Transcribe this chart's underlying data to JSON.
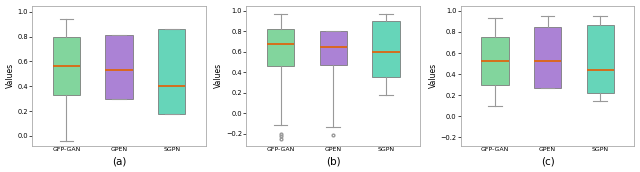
{
  "panels": [
    {
      "label": "(a)",
      "ylabel": "Values",
      "ylim": [
        -0.08,
        1.05
      ],
      "yticks": [
        0.0,
        0.2,
        0.4,
        0.6,
        0.8,
        1.0
      ],
      "categories": [
        "GFP-GAN",
        "GPEN",
        "SGPN"
      ],
      "colors": [
        "#66cc88",
        "#9966cc",
        "#44ccaa"
      ],
      "boxes": [
        {
          "whislo": -0.04,
          "q1": 0.33,
          "med": 0.56,
          "q3": 0.8,
          "whishi": 0.94,
          "fliers": []
        },
        {
          "whislo": 0.3,
          "q1": 0.3,
          "med": 0.53,
          "q3": 0.81,
          "whishi": 0.81,
          "fliers": []
        },
        {
          "whislo": 0.18,
          "q1": 0.18,
          "med": 0.4,
          "q3": 0.86,
          "whishi": 0.86,
          "fliers": []
        }
      ]
    },
    {
      "label": "(b)",
      "ylabel": "Values",
      "ylim": [
        -0.32,
        1.05
      ],
      "yticks": [
        -0.2,
        0.0,
        0.2,
        0.4,
        0.6,
        0.8,
        1.0
      ],
      "categories": [
        "GFP-GAN",
        "GPEN",
        "SGPN"
      ],
      "colors": [
        "#66cc88",
        "#9966cc",
        "#44ccaa"
      ],
      "boxes": [
        {
          "whislo": -0.12,
          "q1": 0.46,
          "med": 0.67,
          "q3": 0.82,
          "whishi": 0.97,
          "fliers": [
            -0.25,
            -0.22,
            -0.2
          ]
        },
        {
          "whislo": -0.14,
          "q1": 0.47,
          "med": 0.65,
          "q3": 0.8,
          "whishi": 0.8,
          "fliers": [
            -0.21
          ]
        },
        {
          "whislo": 0.18,
          "q1": 0.35,
          "med": 0.6,
          "q3": 0.9,
          "whishi": 0.97,
          "fliers": []
        }
      ]
    },
    {
      "label": "(c)",
      "ylabel": "Values",
      "ylim": [
        -0.28,
        1.05
      ],
      "yticks": [
        -0.2,
        0.0,
        0.2,
        0.4,
        0.6,
        0.8,
        1.0
      ],
      "categories": [
        "GFP-GAN",
        "GPEN",
        "SGPN"
      ],
      "colors": [
        "#66cc88",
        "#9966cc",
        "#44ccaa"
      ],
      "boxes": [
        {
          "whislo": 0.1,
          "q1": 0.3,
          "med": 0.52,
          "q3": 0.75,
          "whishi": 0.93,
          "fliers": []
        },
        {
          "whislo": 0.27,
          "q1": 0.27,
          "med": 0.52,
          "q3": 0.85,
          "whishi": 0.95,
          "fliers": []
        },
        {
          "whislo": 0.15,
          "q1": 0.22,
          "med": 0.44,
          "q3": 0.87,
          "whishi": 0.95,
          "fliers": []
        }
      ]
    }
  ],
  "fig_bg": "#ffffff",
  "ax_bg": "#ffffff",
  "median_color": "#dd6611",
  "whisker_color": "#999999",
  "cap_color": "#999999",
  "box_edge_color": "#777777",
  "grid_color": "#dddddd"
}
